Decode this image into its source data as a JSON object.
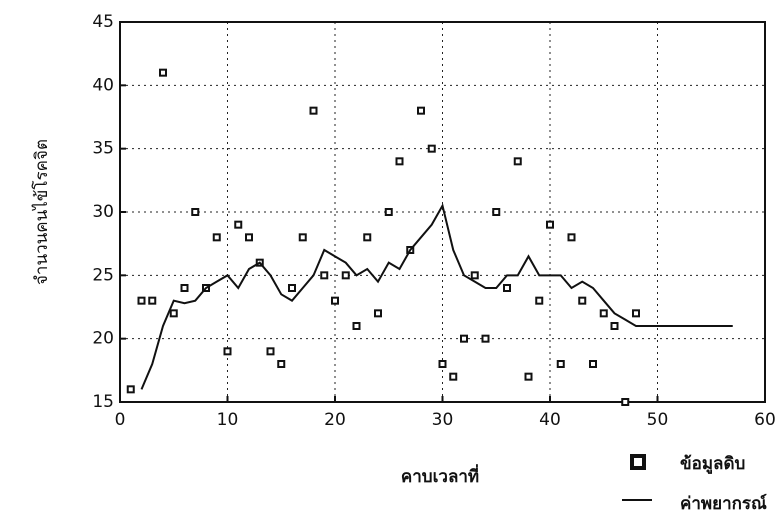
{
  "chart_data": {
    "type": "scatter",
    "y_label": "จำนวนคนไข้โรคจิต",
    "x_label": "คาบเวลาที่",
    "xlim": [
      0,
      60
    ],
    "ylim": [
      15,
      45
    ],
    "xticks": [
      0,
      10,
      20,
      30,
      40,
      50,
      60
    ],
    "yticks": [
      15,
      20,
      25,
      30,
      35,
      40,
      45
    ],
    "grid": true,
    "legend": "bottom-right",
    "series": [
      {
        "name": "ข้อมูลดิบ",
        "type": "scatter",
        "color": "#111111",
        "x": [
          1,
          2,
          3,
          4,
          5,
          6,
          7,
          8,
          9,
          10,
          11,
          12,
          13,
          14,
          15,
          16,
          17,
          18,
          19,
          20,
          21,
          22,
          23,
          24,
          25,
          26,
          27,
          28,
          29,
          30,
          31,
          32,
          33,
          34,
          35,
          36,
          37,
          38,
          39,
          40,
          41,
          42,
          43,
          44,
          45,
          46,
          47,
          48
        ],
        "values": [
          16,
          23,
          23,
          41,
          22,
          24,
          30,
          24,
          28,
          19,
          29,
          28,
          26,
          19,
          18,
          24,
          28,
          38,
          25,
          23,
          25,
          21,
          28,
          22,
          30,
          34,
          27,
          38,
          35,
          18,
          17,
          20,
          25,
          20,
          30,
          24,
          34,
          17,
          23,
          29,
          18,
          28,
          23,
          18,
          22,
          21,
          15,
          22
        ]
      },
      {
        "name": "ค่าพยากรณ์",
        "type": "line",
        "color": "#111111",
        "x": [
          2,
          3,
          4,
          5,
          6,
          7,
          8,
          9,
          10,
          11,
          12,
          13,
          14,
          15,
          16,
          17,
          18,
          19,
          20,
          21,
          22,
          23,
          24,
          25,
          26,
          27,
          28,
          29,
          30,
          31,
          32,
          33,
          34,
          35,
          36,
          37,
          38,
          39,
          40,
          41,
          42,
          43,
          44,
          45,
          46,
          47,
          48,
          49,
          50,
          51,
          52,
          53,
          54,
          55,
          56,
          57
        ],
        "values": [
          16,
          18,
          21,
          23,
          22.8,
          23,
          24,
          24.5,
          25,
          24,
          25.5,
          26,
          25,
          23.5,
          23,
          24,
          25,
          27,
          26.5,
          26,
          25,
          25.5,
          24.5,
          26,
          25.5,
          27,
          28,
          29,
          30.5,
          27,
          25,
          24.5,
          24,
          24,
          25,
          25,
          26.5,
          25,
          25,
          25,
          24,
          24.5,
          24,
          23,
          22,
          21.5,
          21,
          21,
          21,
          21,
          21,
          21,
          21,
          21,
          21,
          21
        ]
      }
    ]
  }
}
